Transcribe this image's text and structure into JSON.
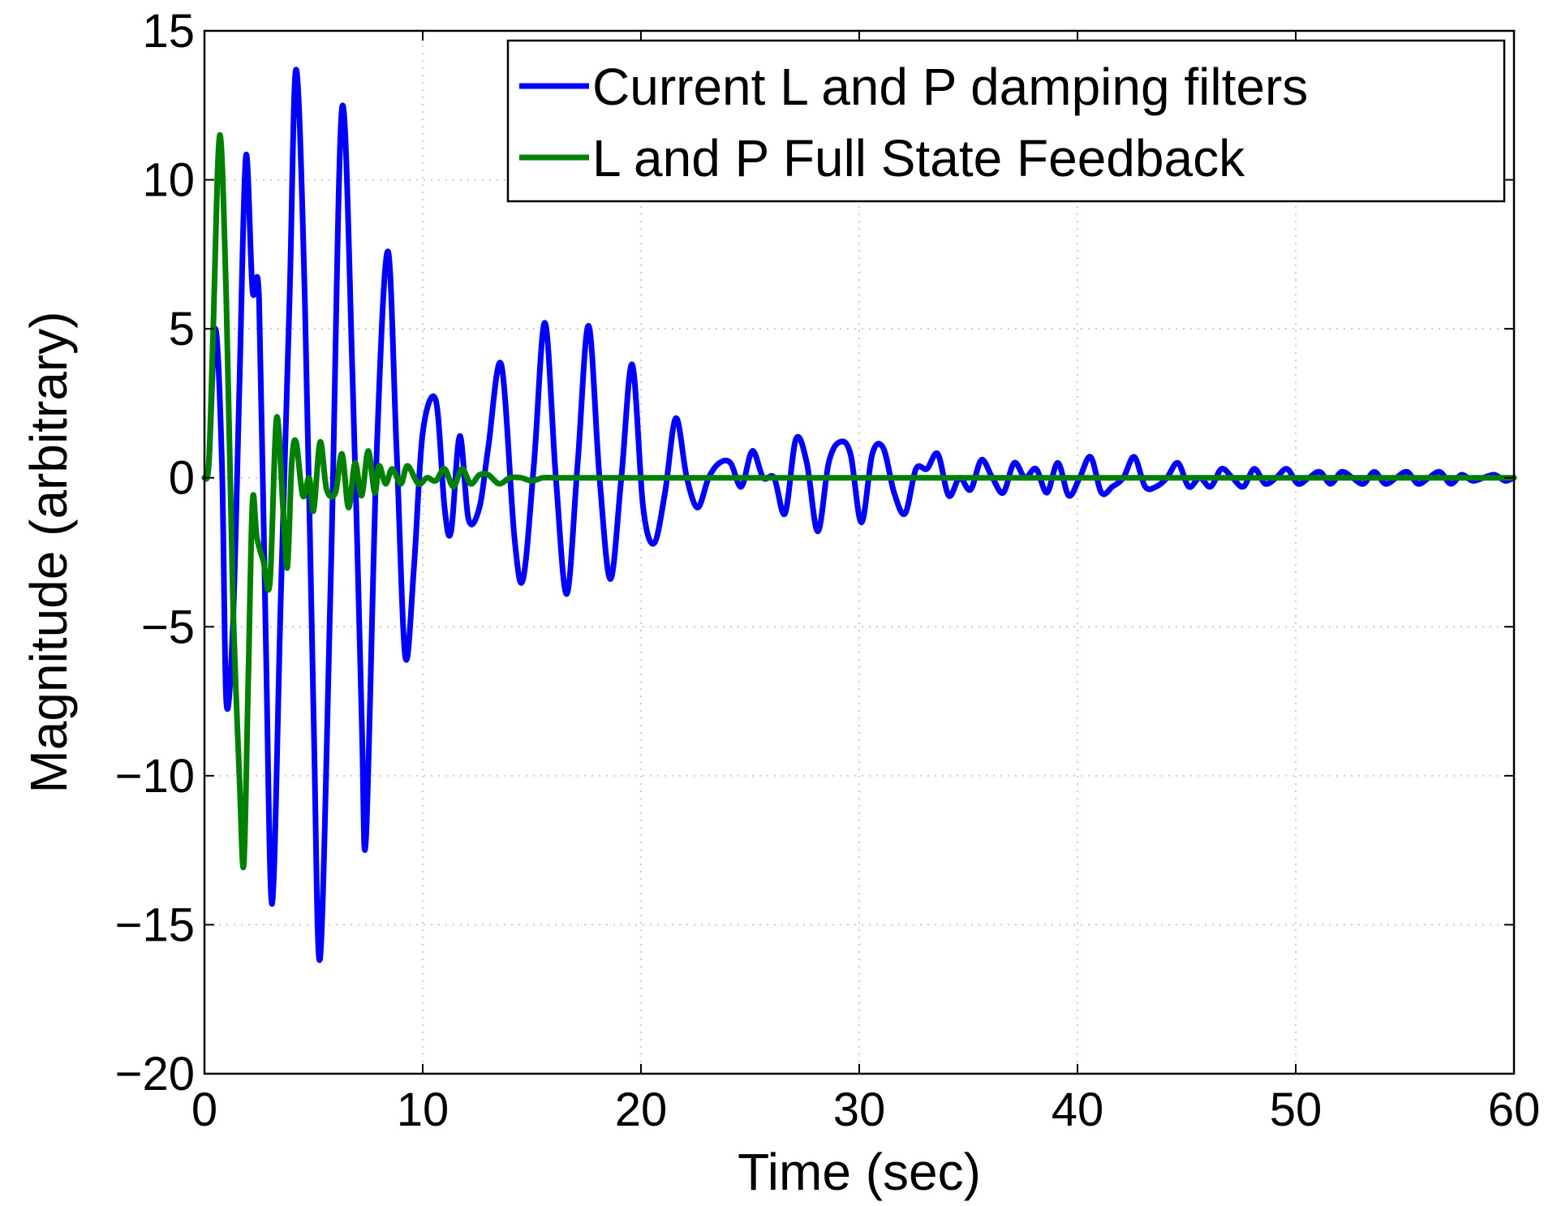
{
  "chart_data": {
    "type": "line",
    "xlabel": "Time (sec)",
    "ylabel": "Magnitude (arbitrary)",
    "xlim": [
      0,
      60
    ],
    "ylim": [
      -20,
      15
    ],
    "xticks": [
      0,
      10,
      20,
      30,
      40,
      50,
      60
    ],
    "yticks": [
      -20,
      -15,
      -10,
      -5,
      0,
      5,
      10,
      15
    ],
    "xtick_labels": [
      "0",
      "10",
      "20",
      "30",
      "40",
      "50",
      "60"
    ],
    "ytick_labels": [
      "−20",
      "−15",
      "−10",
      "−5",
      "0",
      "5",
      "10",
      "15"
    ],
    "grid": true,
    "legend_position": "top-right",
    "series": [
      {
        "name": "Current L and P damping filters",
        "color": "#0000ff",
        "points": [
          [
            0,
            0
          ],
          [
            0.2,
            0.5
          ],
          [
            0.5,
            5.0
          ],
          [
            0.8,
            0.5
          ],
          [
            1.0,
            -7.5
          ],
          [
            1.3,
            -5.0
          ],
          [
            1.6,
            3.0
          ],
          [
            1.9,
            10.8
          ],
          [
            2.2,
            6.3
          ],
          [
            2.5,
            6.0
          ],
          [
            2.8,
            -5.0
          ],
          [
            3.1,
            -14.3
          ],
          [
            3.5,
            -4.0
          ],
          [
            3.9,
            6.0
          ],
          [
            4.2,
            13.7
          ],
          [
            4.6,
            6.0
          ],
          [
            5.0,
            -8.0
          ],
          [
            5.3,
            -16.1
          ],
          [
            5.8,
            -3.0
          ],
          [
            6.3,
            12.4
          ],
          [
            6.8,
            3.0
          ],
          [
            7.2,
            -8.0
          ],
          [
            7.4,
            -12.1
          ],
          [
            7.9,
            1.0
          ],
          [
            8.4,
            7.6
          ],
          [
            8.8,
            1.0
          ],
          [
            9.2,
            -6.0
          ],
          [
            9.6,
            -3.0
          ],
          [
            10.0,
            1.5
          ],
          [
            10.6,
            2.6
          ],
          [
            11.0,
            -1.0
          ],
          [
            11.3,
            -1.8
          ],
          [
            11.7,
            1.4
          ],
          [
            12.1,
            -1.4
          ],
          [
            12.6,
            -1.0
          ],
          [
            13.0,
            1.0
          ],
          [
            13.6,
            3.8
          ],
          [
            14.2,
            -2.0
          ],
          [
            14.6,
            -3.4
          ],
          [
            15.1,
            0.5
          ],
          [
            15.6,
            5.2
          ],
          [
            16.1,
            0.0
          ],
          [
            16.6,
            -3.9
          ],
          [
            17.1,
            0.5
          ],
          [
            17.6,
            5.1
          ],
          [
            18.1,
            0.0
          ],
          [
            18.6,
            -3.4
          ],
          [
            19.1,
            0.0
          ],
          [
            19.6,
            3.8
          ],
          [
            20.1,
            -1.0
          ],
          [
            20.6,
            -2.2
          ],
          [
            21.1,
            -0.5
          ],
          [
            21.6,
            2.0
          ],
          [
            22.1,
            0.0
          ],
          [
            22.6,
            -1.0
          ],
          [
            23.1,
            0.0
          ],
          [
            23.6,
            0.5
          ],
          [
            24.1,
            0.5
          ],
          [
            24.6,
            -0.3
          ],
          [
            25.1,
            0.9
          ],
          [
            25.6,
            0.0
          ],
          [
            26.1,
            0.0
          ],
          [
            26.6,
            -1.2
          ],
          [
            27.1,
            1.3
          ],
          [
            27.6,
            0.5
          ],
          [
            28.1,
            -1.8
          ],
          [
            28.6,
            0.5
          ],
          [
            29.1,
            1.2
          ],
          [
            29.6,
            0.8
          ],
          [
            30.1,
            -1.5
          ],
          [
            30.6,
            0.8
          ],
          [
            31.1,
            1.0
          ],
          [
            31.6,
            -0.5
          ],
          [
            32.1,
            -1.2
          ],
          [
            32.6,
            0.3
          ],
          [
            33.1,
            0.3
          ],
          [
            33.6,
            0.8
          ],
          [
            34.1,
            -0.6
          ],
          [
            34.6,
            0.0
          ],
          [
            35.1,
            -0.4
          ],
          [
            35.6,
            0.6
          ],
          [
            36.1,
            0.0
          ],
          [
            36.6,
            -0.5
          ],
          [
            37.1,
            0.5
          ],
          [
            37.6,
            0.0
          ],
          [
            38.1,
            0.3
          ],
          [
            38.6,
            -0.5
          ],
          [
            39.1,
            0.5
          ],
          [
            39.6,
            -0.6
          ],
          [
            40.1,
            0.0
          ],
          [
            40.6,
            0.7
          ],
          [
            41.1,
            -0.5
          ],
          [
            41.6,
            -0.3
          ],
          [
            42.1,
            0.0
          ],
          [
            42.6,
            0.7
          ],
          [
            43.1,
            -0.3
          ],
          [
            43.6,
            -0.3
          ],
          [
            44.1,
            0.0
          ],
          [
            44.6,
            0.5
          ],
          [
            45.1,
            -0.3
          ],
          [
            45.6,
            0.0
          ],
          [
            46.1,
            -0.3
          ],
          [
            46.6,
            0.3
          ],
          [
            47.1,
            0.0
          ],
          [
            47.6,
            -0.3
          ],
          [
            48.1,
            0.3
          ],
          [
            48.6,
            -0.2
          ],
          [
            49.1,
            0.0
          ],
          [
            49.6,
            0.3
          ],
          [
            50.1,
            -0.2
          ],
          [
            50.6,
            0.0
          ],
          [
            51.1,
            0.2
          ],
          [
            51.6,
            -0.2
          ],
          [
            52.1,
            0.2
          ],
          [
            52.6,
            0.0
          ],
          [
            53.1,
            -0.2
          ],
          [
            53.6,
            0.2
          ],
          [
            54.1,
            -0.2
          ],
          [
            54.6,
            0.0
          ],
          [
            55.1,
            0.2
          ],
          [
            55.6,
            -0.2
          ],
          [
            56.1,
            0.0
          ],
          [
            56.6,
            0.2
          ],
          [
            57.1,
            -0.2
          ],
          [
            57.6,
            0.1
          ],
          [
            58.1,
            -0.1
          ],
          [
            58.6,
            0.0
          ],
          [
            59.1,
            0.1
          ],
          [
            59.6,
            -0.1
          ],
          [
            60.0,
            0.0
          ]
        ]
      },
      {
        "name": "L and P Full State Feedback",
        "color": "#008000",
        "points": [
          [
            0,
            0
          ],
          [
            0.2,
            0.5
          ],
          [
            0.4,
            5.0
          ],
          [
            0.7,
            11.5
          ],
          [
            1.0,
            6.0
          ],
          [
            1.3,
            -4.0
          ],
          [
            1.6,
            -10.0
          ],
          [
            1.8,
            -13.0
          ],
          [
            2.0,
            -7.0
          ],
          [
            2.2,
            -0.8
          ],
          [
            2.4,
            -2.0
          ],
          [
            2.7,
            -2.8
          ],
          [
            3.0,
            -3.5
          ],
          [
            3.3,
            2.0
          ],
          [
            3.6,
            -1.0
          ],
          [
            3.8,
            -3.0
          ],
          [
            4.0,
            0.5
          ],
          [
            4.2,
            1.2
          ],
          [
            4.5,
            -0.6
          ],
          [
            4.8,
            0.0
          ],
          [
            5.0,
            -1.1
          ],
          [
            5.3,
            1.2
          ],
          [
            5.6,
            -0.4
          ],
          [
            6.0,
            -0.5
          ],
          [
            6.3,
            0.8
          ],
          [
            6.6,
            -1.0
          ],
          [
            6.9,
            0.5
          ],
          [
            7.2,
            -0.6
          ],
          [
            7.5,
            0.9
          ],
          [
            7.8,
            -0.5
          ],
          [
            8.0,
            0.4
          ],
          [
            8.3,
            -0.2
          ],
          [
            8.6,
            0.3
          ],
          [
            9.0,
            -0.2
          ],
          [
            9.3,
            0.4
          ],
          [
            9.8,
            -0.2
          ],
          [
            10.2,
            0.0
          ],
          [
            10.6,
            -0.1
          ],
          [
            11.0,
            0.3
          ],
          [
            11.4,
            -0.3
          ],
          [
            11.8,
            0.3
          ],
          [
            12.2,
            -0.2
          ],
          [
            12.6,
            0.1
          ],
          [
            13.0,
            0.1
          ],
          [
            13.5,
            -0.2
          ],
          [
            14.0,
            0.0
          ],
          [
            14.5,
            0.0
          ],
          [
            15.0,
            -0.1
          ],
          [
            15.5,
            0.0
          ],
          [
            16.0,
            0.0
          ],
          [
            17.0,
            0.0
          ],
          [
            18.0,
            0.0
          ],
          [
            20.0,
            0.0
          ],
          [
            25.0,
            0.0
          ],
          [
            30.0,
            0.0
          ],
          [
            35.0,
            0.0
          ],
          [
            40.0,
            0.0
          ],
          [
            45.0,
            0.0
          ],
          [
            50.0,
            0.0
          ],
          [
            55.0,
            0.0
          ],
          [
            60.0,
            0.0
          ]
        ]
      }
    ]
  }
}
